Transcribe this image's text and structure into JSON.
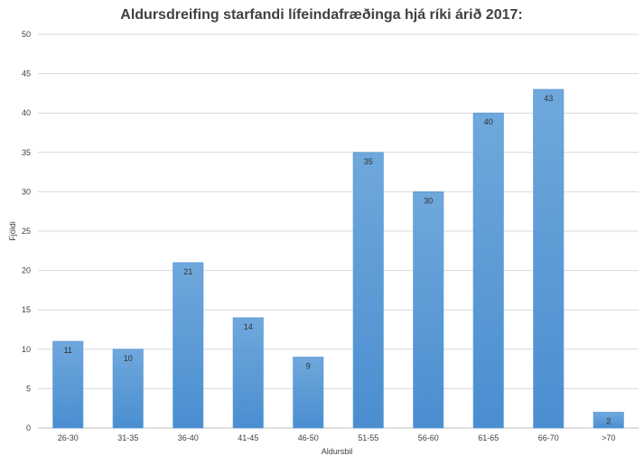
{
  "chart_data": {
    "type": "bar",
    "title": "Aldursdreifing starfandi lífeindafræðinga hjá ríki árið 2017:",
    "xlabel": "Aldursbil",
    "ylabel": "Fjöldi",
    "categories": [
      "26-30",
      "31-35",
      "36-40",
      "41-45",
      "46-50",
      "51-55",
      "56-60",
      "61-65",
      "66-70",
      ">70"
    ],
    "values": [
      11,
      10,
      21,
      14,
      9,
      35,
      30,
      40,
      43,
      2
    ],
    "ylim": [
      0,
      50
    ],
    "yticks": [
      0,
      5,
      10,
      15,
      20,
      25,
      30,
      35,
      40,
      45,
      50
    ],
    "grid": true,
    "legend": "none",
    "data_labels": true,
    "bar_color_top": "#6fa8dc",
    "bar_color_bottom": "#4a8ed0",
    "bar_border_color": "#5b9bd5"
  }
}
